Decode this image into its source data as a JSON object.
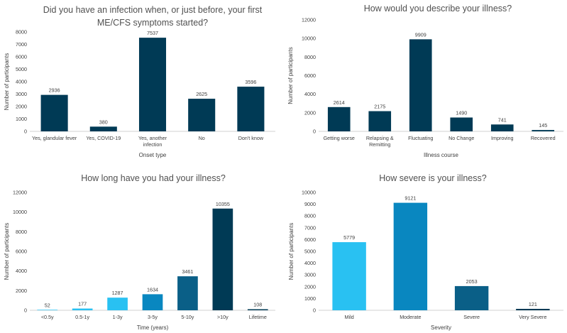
{
  "chart_data": [
    {
      "type": "bar",
      "title_lines": [
        "Did you have an infection when, or just before, your first",
        "ME/CFS symptoms started?"
      ],
      "categories": [
        "Yes, glandular fever",
        "Yes, COVID-19",
        "Yes, another infection",
        "No",
        "Don't know"
      ],
      "category_lines": [
        [
          "Yes, glandular fever"
        ],
        [
          "Yes, COVID-19"
        ],
        [
          "Yes, another",
          "infection"
        ],
        [
          "No"
        ],
        [
          "Don't know"
        ]
      ],
      "values": [
        2936,
        380,
        7537,
        2625,
        3596
      ],
      "value_labels": [
        "2936",
        "380",
        "7537",
        "2625",
        "3596"
      ],
      "bar_colors": [
        "#003a55",
        "#003a55",
        "#003a55",
        "#003a55",
        "#003a55"
      ],
      "xlabel": "Onset type",
      "ylabel": "Number of participants",
      "ylim": [
        0,
        8000
      ],
      "yticks": [
        "0",
        "1000",
        "2000",
        "3000",
        "4000",
        "5000",
        "6000",
        "7000",
        "8000"
      ],
      "ytick_values": [
        0,
        1000,
        2000,
        3000,
        4000,
        5000,
        6000,
        7000,
        8000
      ]
    },
    {
      "type": "bar",
      "title_lines": [
        "How would you describe your illness?"
      ],
      "categories": [
        "Getting worse",
        "Relapsing & Remitting",
        "Fluctuating",
        "No Change",
        "Improving",
        "Recovered"
      ],
      "category_lines": [
        [
          "Getting worse"
        ],
        [
          "Relapsing &",
          "Remitting"
        ],
        [
          "Fluctuating"
        ],
        [
          "No Change"
        ],
        [
          "Improving"
        ],
        [
          "Recovered"
        ]
      ],
      "values": [
        2614,
        2175,
        9909,
        1490,
        741,
        145
      ],
      "value_labels": [
        "2614",
        "2175",
        "9909",
        "1490",
        "741",
        "145"
      ],
      "bar_colors": [
        "#003a55",
        "#003a55",
        "#003a55",
        "#003a55",
        "#003a55",
        "#003a55"
      ],
      "xlabel": "Illness course",
      "ylabel": "Number of participants",
      "ylim": [
        0,
        12000
      ],
      "yticks": [
        "0",
        "2000",
        "4000",
        "6000",
        "8000",
        "10000",
        "12000"
      ],
      "ytick_values": [
        0,
        2000,
        4000,
        6000,
        8000,
        10000,
        12000
      ]
    },
    {
      "type": "bar",
      "title_lines": [
        "How long have you had your illness?"
      ],
      "categories": [
        "<0.5y",
        "0.5-1y",
        "1-3y",
        "3-5y",
        "5-10y",
        ">10y",
        "Lifetime"
      ],
      "category_lines": [
        [
          "<0.5y"
        ],
        [
          "0.5-1y"
        ],
        [
          "1-3y"
        ],
        [
          "3-5y"
        ],
        [
          "5-10y"
        ],
        [
          ">10y"
        ],
        [
          "Lifetime"
        ]
      ],
      "values": [
        52,
        177,
        1287,
        1634,
        3461,
        10355,
        108
      ],
      "value_labels": [
        "52",
        "177",
        "1287",
        "1634",
        "3461",
        "10355",
        "108"
      ],
      "bar_colors": [
        "#29c1f2",
        "#29c1f2",
        "#29c1f2",
        "#0987c0",
        "#0a5f87",
        "#003a55",
        "#003a55"
      ],
      "xlabel": "Time (years)",
      "ylabel": "Number of participants",
      "ylim": [
        0,
        12000
      ],
      "yticks": [
        "0",
        "2000",
        "4000",
        "6000",
        "8000",
        "10000",
        "12000"
      ],
      "ytick_values": [
        0,
        2000,
        4000,
        6000,
        8000,
        10000,
        12000
      ]
    },
    {
      "type": "bar",
      "title_lines": [
        "How severe is your illness?"
      ],
      "categories": [
        "Mild",
        "Moderate",
        "Severe",
        "Very Severe"
      ],
      "category_lines": [
        [
          "Mild"
        ],
        [
          "Moderate"
        ],
        [
          "Severe"
        ],
        [
          "Very Severe"
        ]
      ],
      "values": [
        5779,
        9121,
        2053,
        121
      ],
      "value_labels": [
        "5779",
        "9121",
        "2053",
        "121"
      ],
      "bar_colors": [
        "#29c1f2",
        "#0987c0",
        "#0a5f87",
        "#003a55"
      ],
      "xlabel": "Severity",
      "ylabel": "Number of participants",
      "ylim": [
        0,
        10000
      ],
      "yticks": [
        "0",
        "1000",
        "2000",
        "3000",
        "4000",
        "5000",
        "6000",
        "7000",
        "8000",
        "9000",
        "10000"
      ],
      "ytick_values": [
        0,
        1000,
        2000,
        3000,
        4000,
        5000,
        6000,
        7000,
        8000,
        9000,
        10000
      ]
    }
  ]
}
